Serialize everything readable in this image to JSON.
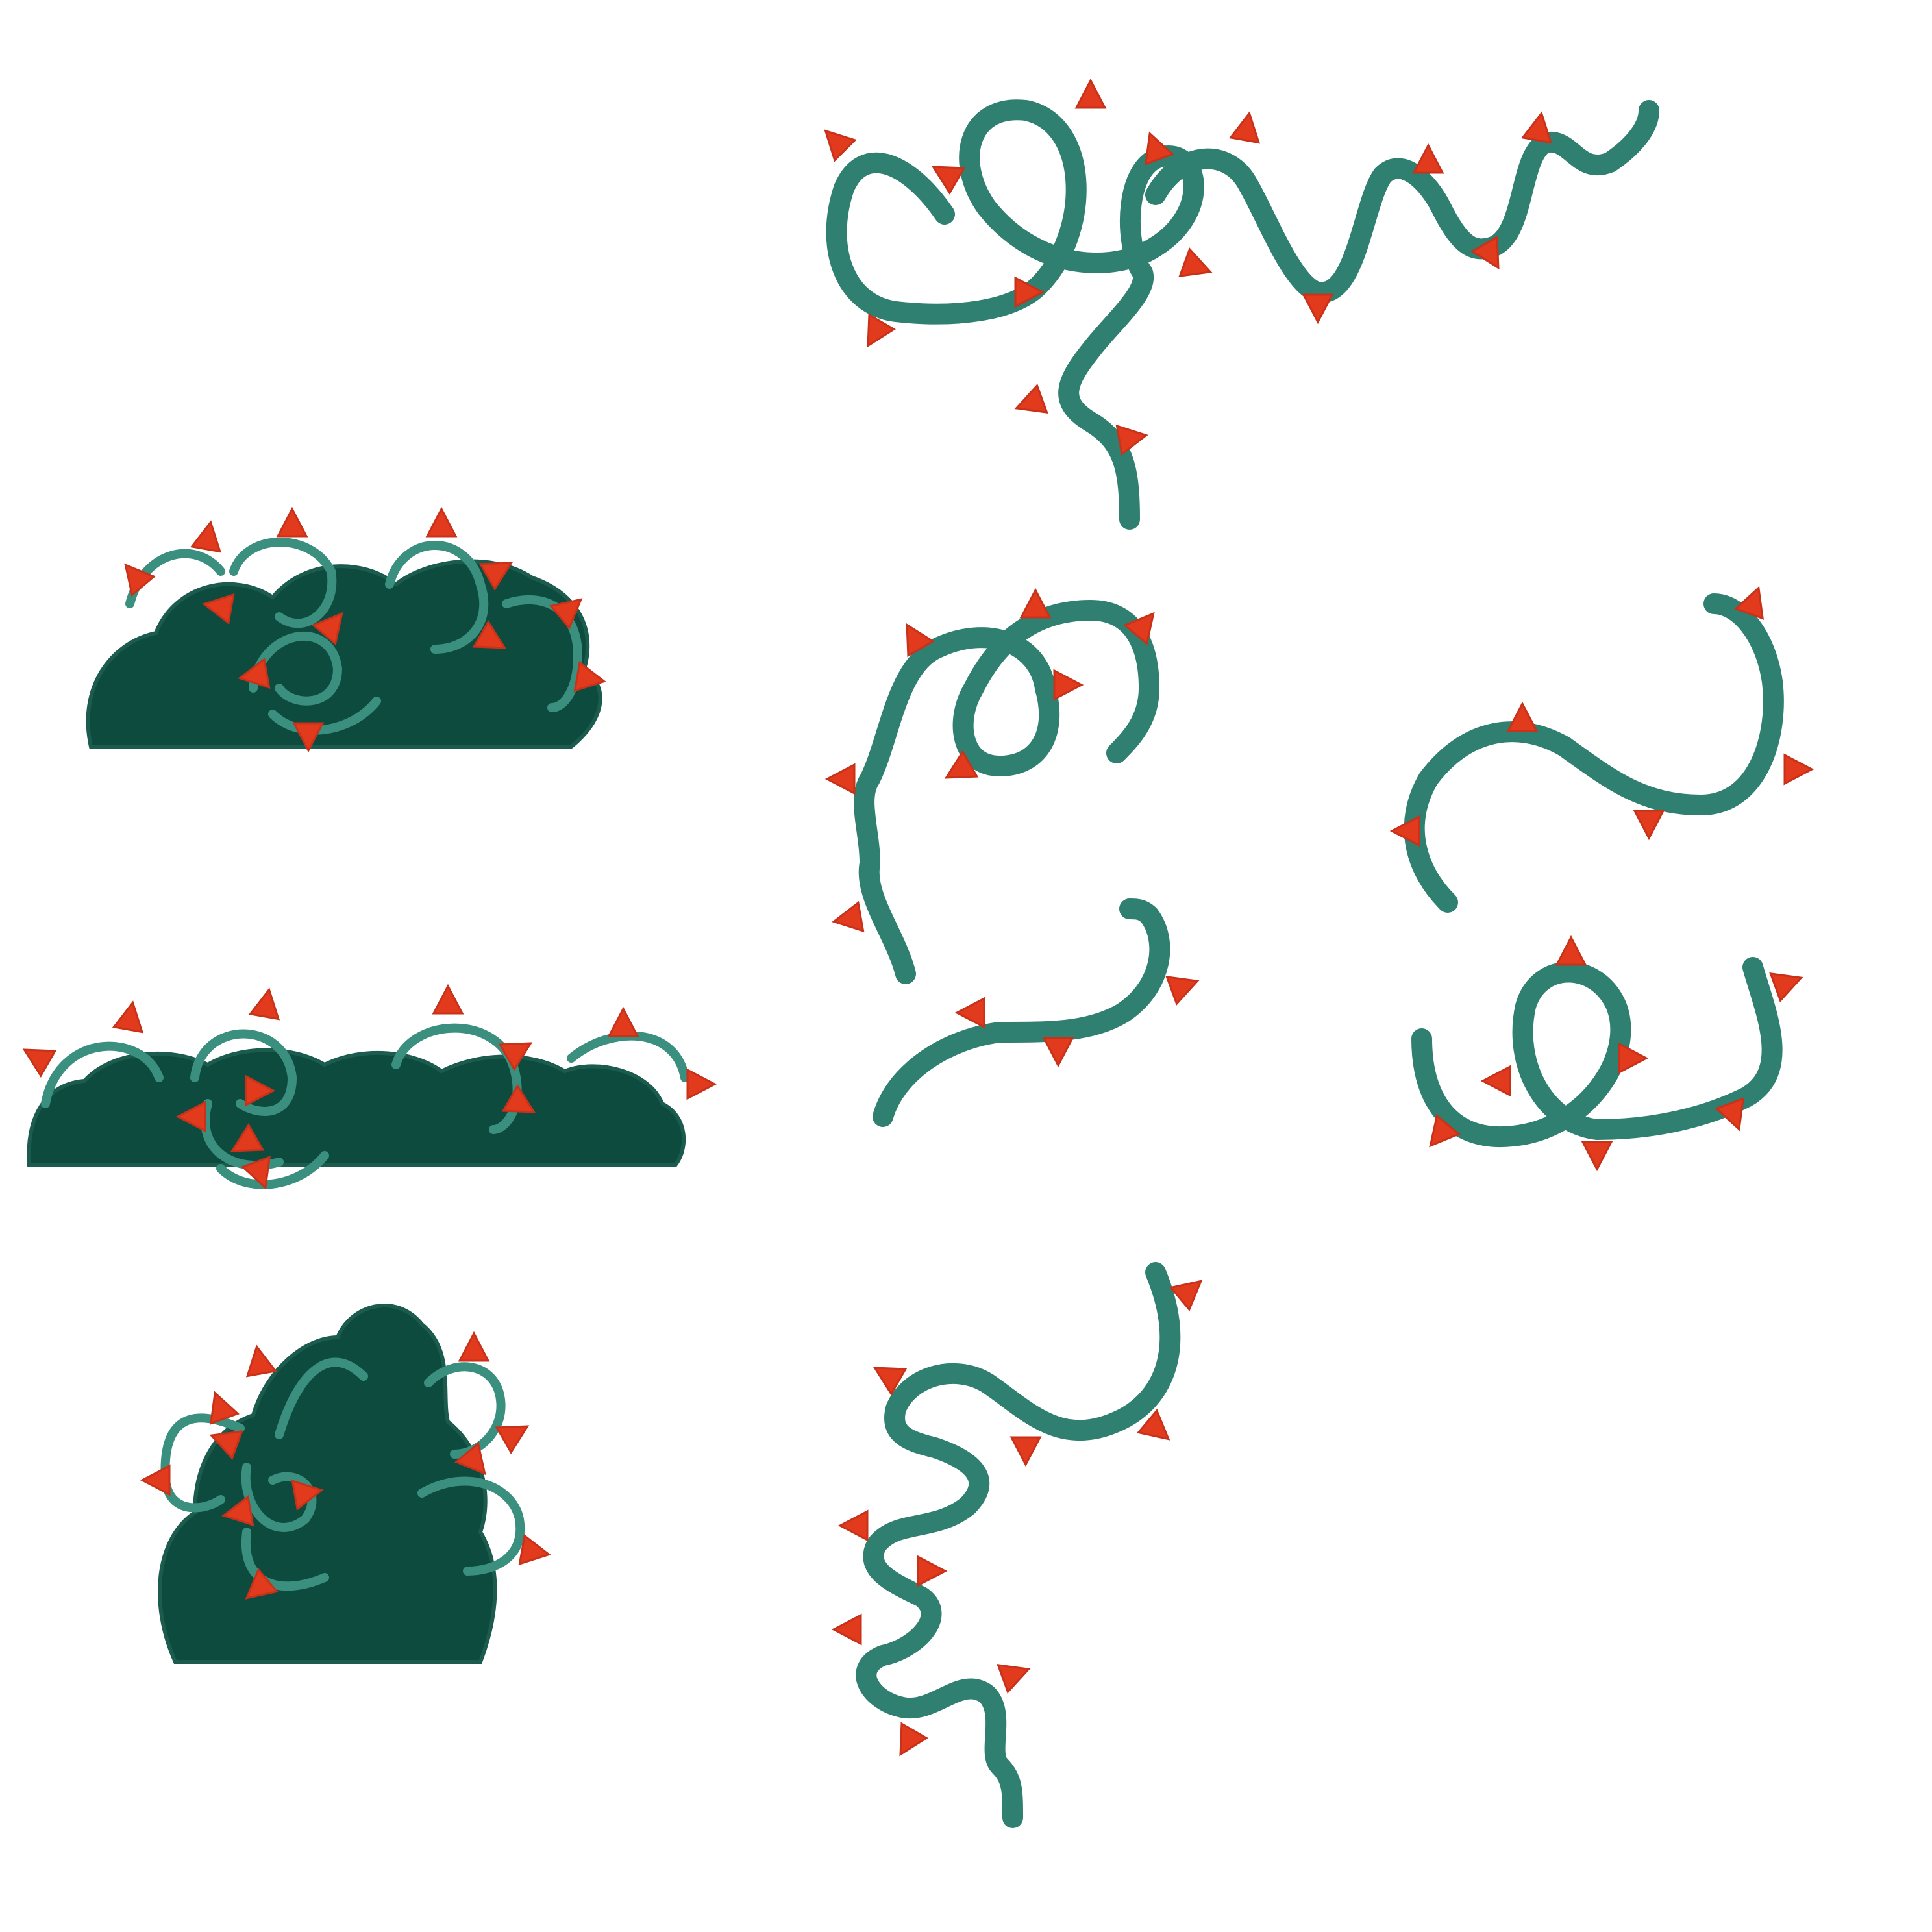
{
  "sheet": {
    "colors": {
      "background": "#ffffff",
      "bush": "#0e4b3f",
      "bush_shade": "#1c5c4e",
      "vine": "#2f8070",
      "vine_light": "#3a8f7e",
      "thorn": "#e13a1c",
      "thorn_dark": "#c8321a"
    },
    "bushes": [
      {
        "name": "bush-small-wide"
      },
      {
        "name": "bush-long-flat"
      },
      {
        "name": "bush-tall-round"
      }
    ],
    "vines": [
      {
        "name": "vine-long-looped"
      },
      {
        "name": "vine-spiral"
      },
      {
        "name": "vine-short-curve"
      },
      {
        "name": "vine-s-curve"
      },
      {
        "name": "vine-loop"
      },
      {
        "name": "vine-zigzag"
      }
    ]
  }
}
